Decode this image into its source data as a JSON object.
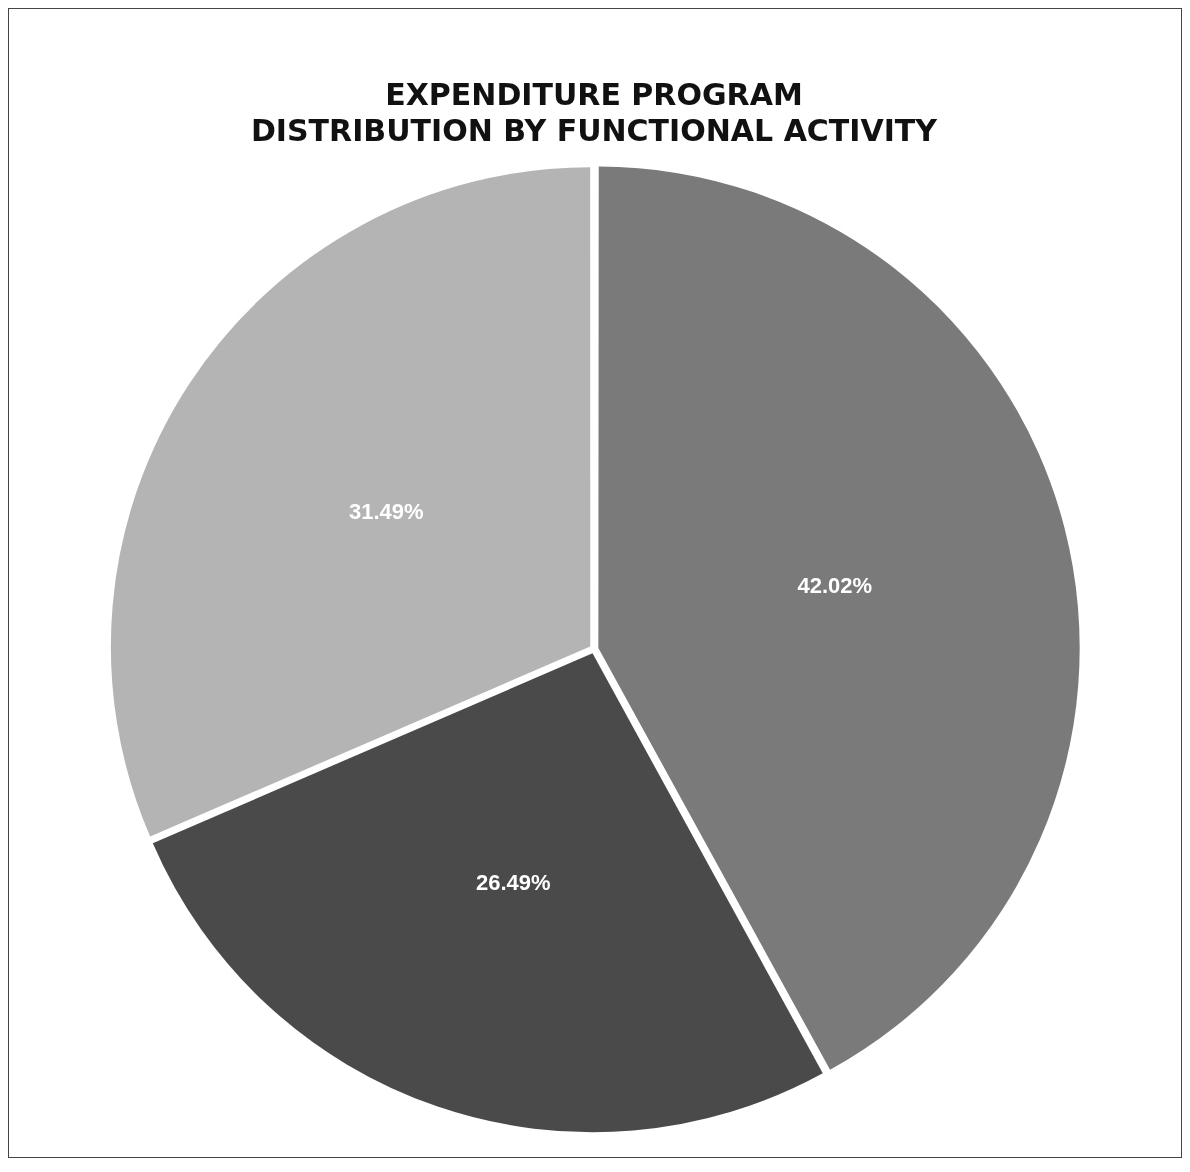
{
  "chart_data": {
    "type": "pie",
    "title": "EXPENDITURE PROGRAM\nDISTRIBUTION BY FUNCTIONAL ACTIVITY",
    "categories": [
      null,
      null,
      null
    ],
    "values": [
      42.02,
      26.49,
      31.49
    ],
    "colors": [
      "#7a7a7a",
      "#4a4a4a",
      "#b4b4b4"
    ],
    "value_labels": [
      "42.02%",
      "26.49%",
      "31.49%"
    ],
    "legend": false
  }
}
